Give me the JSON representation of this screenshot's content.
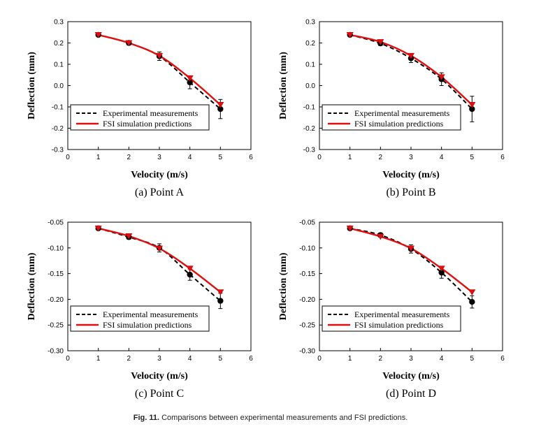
{
  "figure": {
    "label": "Fig. 11.",
    "text": "Comparisons between experimental measurements and FSI predictions."
  },
  "chart_data": [
    {
      "type": "line",
      "caption": "(a) Point A",
      "xlabel": "Velocity (m/s)",
      "ylabel": "Deflection (mm)",
      "xlim": [
        0,
        6
      ],
      "ylim": [
        -0.3,
        0.3
      ],
      "xticks": [
        "0",
        "1",
        "2",
        "3",
        "4",
        "5",
        "6"
      ],
      "yticks": [
        "-0.3",
        "-0.2",
        "-0.1",
        "0.0",
        "0.1",
        "0.2",
        "0.3"
      ],
      "legend_position": "bottom-left",
      "x": [
        1,
        2,
        3,
        4,
        5
      ],
      "series": [
        {
          "name": "Experimental measurements",
          "style": "dashed",
          "color": "#000000",
          "marker": "circle",
          "values": [
            0.238,
            0.2,
            0.138,
            0.015,
            -0.11
          ],
          "errors": [
            0.006,
            0.01,
            0.02,
            0.03,
            0.045
          ]
        },
        {
          "name": "FSI simulation predictions",
          "style": "solid",
          "color": "#e01010",
          "marker": "triangle-down",
          "values": [
            0.238,
            0.2,
            0.14,
            0.035,
            -0.09
          ]
        }
      ]
    },
    {
      "type": "line",
      "caption": "(b) Point B",
      "xlabel": "Velocity (m/s)",
      "ylabel": "Deflection (mm)",
      "xlim": [
        0,
        6
      ],
      "ylim": [
        -0.3,
        0.3
      ],
      "xticks": [
        "0",
        "1",
        "2",
        "3",
        "4",
        "5",
        "6"
      ],
      "yticks": [
        "-0.3",
        "-0.2",
        "-0.1",
        "0.0",
        "0.1",
        "0.2",
        "0.3"
      ],
      "legend_position": "bottom-left",
      "x": [
        1,
        2,
        3,
        4,
        5
      ],
      "series": [
        {
          "name": "Experimental measurements",
          "style": "dashed",
          "color": "#000000",
          "marker": "circle",
          "values": [
            0.238,
            0.198,
            0.128,
            0.03,
            -0.11
          ],
          "errors": [
            0.006,
            0.01,
            0.02,
            0.03,
            0.06
          ]
        },
        {
          "name": "FSI simulation predictions",
          "style": "solid",
          "color": "#e01010",
          "marker": "triangle-down",
          "values": [
            0.238,
            0.205,
            0.14,
            0.04,
            -0.09
          ]
        }
      ]
    },
    {
      "type": "line",
      "caption": "(c) Point C",
      "xlabel": "Velocity (m/s)",
      "ylabel": "Deflection (mm)",
      "xlim": [
        0,
        6
      ],
      "ylim": [
        -0.3,
        -0.05
      ],
      "xticks": [
        "0",
        "1",
        "2",
        "3",
        "4",
        "5",
        "6"
      ],
      "yticks": [
        "-0.30",
        "-0.25",
        "-0.20",
        "-0.15",
        "-0.10",
        "-0.05"
      ],
      "legend_position": "bottom-left",
      "x": [
        1,
        2,
        3,
        4,
        5
      ],
      "series": [
        {
          "name": "Experimental measurements",
          "style": "dashed",
          "color": "#000000",
          "marker": "circle",
          "values": [
            -0.062,
            -0.079,
            -0.1,
            -0.152,
            -0.203
          ],
          "errors": [
            0.003,
            0.004,
            0.008,
            0.011,
            0.015
          ]
        },
        {
          "name": "FSI simulation predictions",
          "style": "solid",
          "color": "#e01010",
          "marker": "triangle-down",
          "values": [
            -0.062,
            -0.077,
            -0.101,
            -0.14,
            -0.186
          ]
        }
      ]
    },
    {
      "type": "line",
      "caption": "(d) Point D",
      "xlabel": "Velocity (m/s)",
      "ylabel": "Deflection (mm)",
      "xlim": [
        0,
        6
      ],
      "ylim": [
        -0.3,
        -0.05
      ],
      "xticks": [
        "0",
        "1",
        "2",
        "3",
        "4",
        "5",
        "6"
      ],
      "yticks": [
        "-0.30",
        "-0.25",
        "-0.20",
        "-0.15",
        "-0.10",
        "-0.05"
      ],
      "legend_position": "bottom-left",
      "x": [
        1,
        2,
        3,
        4,
        5
      ],
      "series": [
        {
          "name": "Experimental measurements",
          "style": "dashed",
          "color": "#000000",
          "marker": "circle",
          "values": [
            -0.062,
            -0.075,
            -0.102,
            -0.148,
            -0.205
          ],
          "errors": [
            0.003,
            0.004,
            0.008,
            0.011,
            0.012
          ]
        },
        {
          "name": "FSI simulation predictions",
          "style": "solid",
          "color": "#e01010",
          "marker": "triangle-down",
          "values": [
            -0.062,
            -0.078,
            -0.101,
            -0.14,
            -0.186
          ]
        }
      ]
    }
  ]
}
